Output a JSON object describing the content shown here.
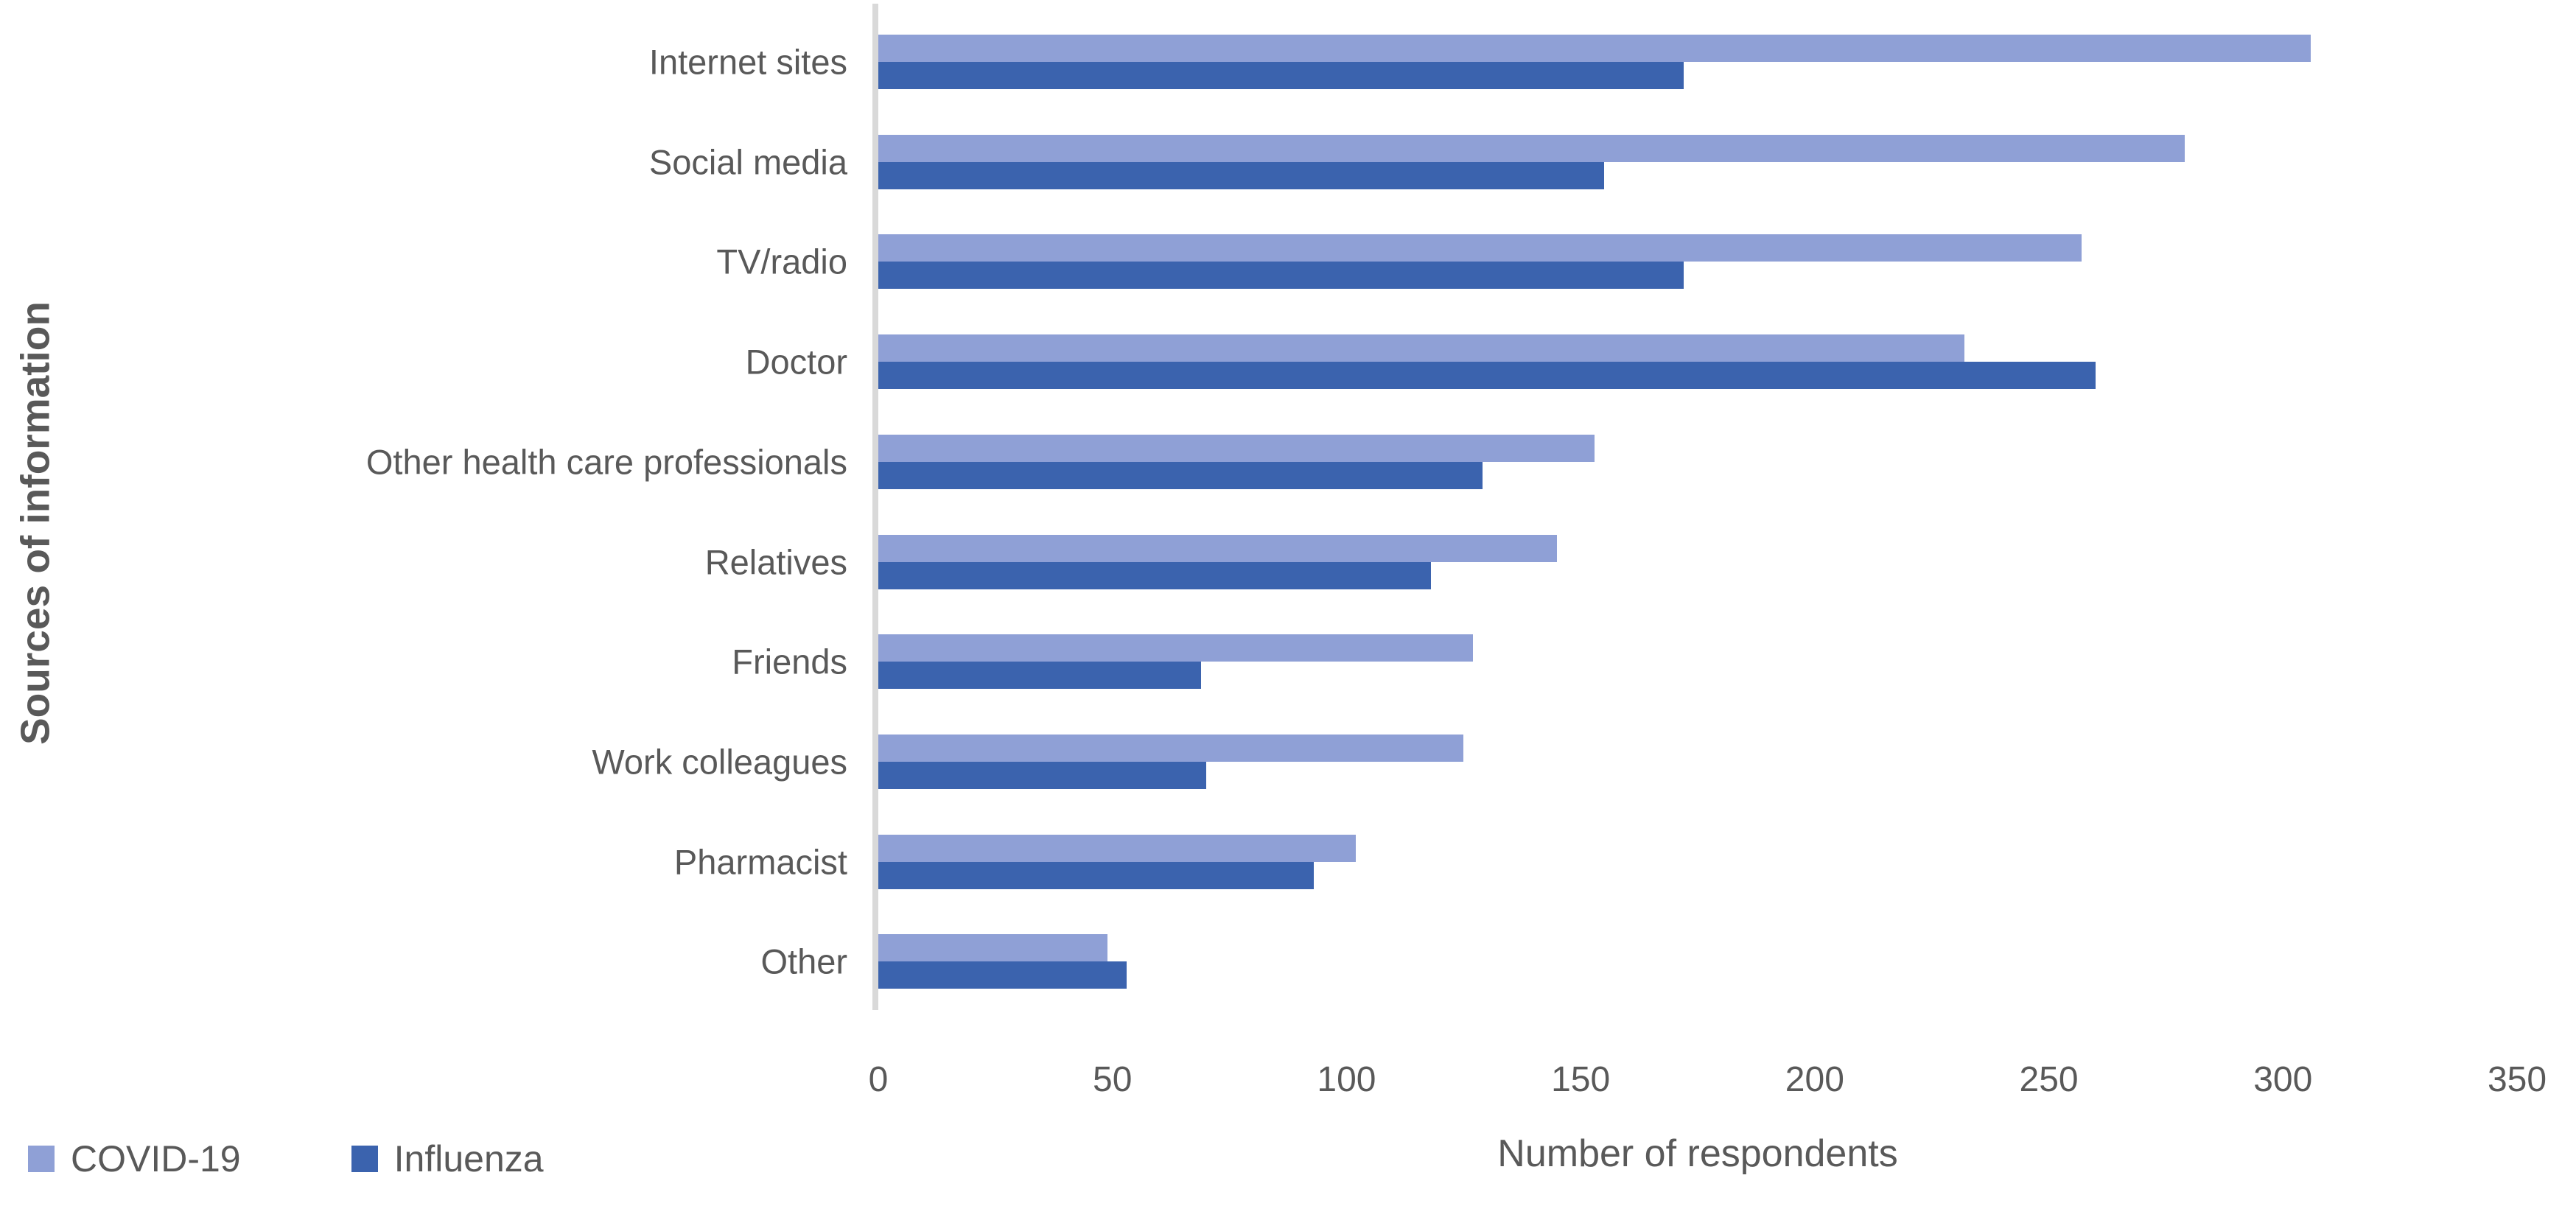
{
  "chart_data": {
    "type": "bar",
    "orientation": "horizontal",
    "title": "",
    "xlabel": "Number of respondents",
    "ylabel": "Sources of information",
    "xlim": [
      0,
      350
    ],
    "xticks": [
      0,
      50,
      100,
      150,
      200,
      250,
      300,
      350
    ],
    "grid": false,
    "legend_position": "bottom-left",
    "categories": [
      "Internet sites",
      "Social media",
      "TV/radio",
      "Doctor",
      "Other health care professionals",
      "Relatives",
      "Friends",
      "Work colleagues",
      "Pharmacist",
      "Other"
    ],
    "series": [
      {
        "name": "COVID-19",
        "color": "#8FA0D6",
        "values": [
          306,
          279,
          257,
          232,
          153,
          145,
          127,
          125,
          102,
          49
        ]
      },
      {
        "name": "Influenza",
        "color": "#3B63AE",
        "values": [
          172,
          155,
          172,
          260,
          129,
          118,
          69,
          70,
          93,
          53
        ]
      }
    ],
    "axis_line_color": "#D9D9D9",
    "text_color": "#595959"
  }
}
